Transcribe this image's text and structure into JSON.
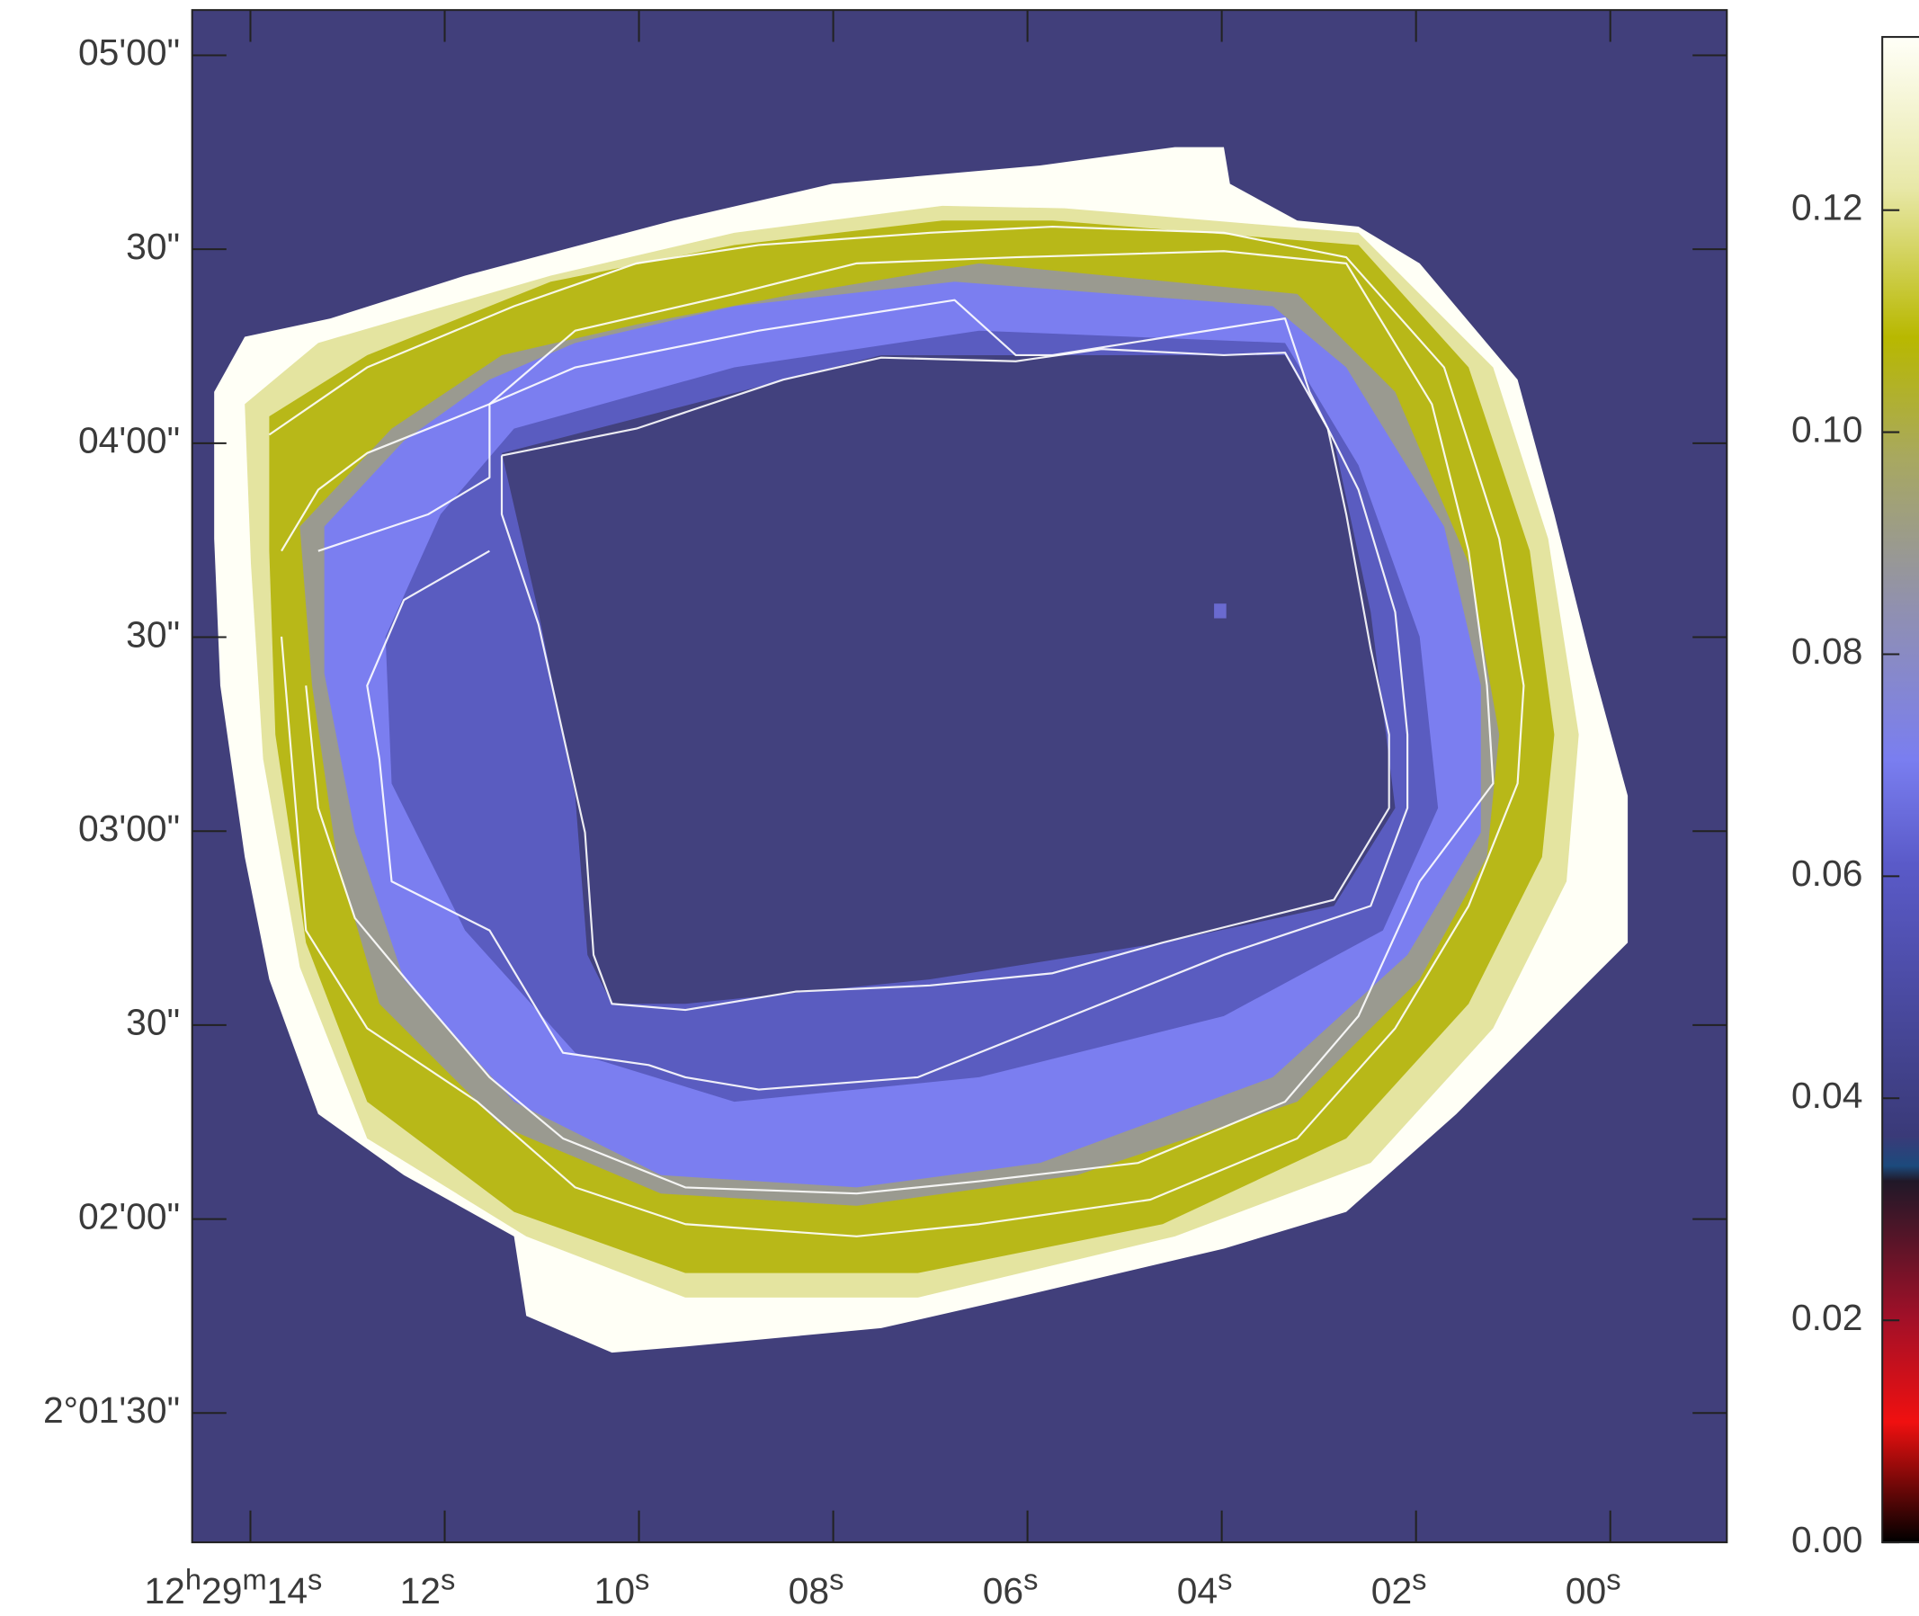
{
  "chart_data": {
    "type": "image",
    "xlim": [
      14.6,
      -1.2
    ],
    "xticks": [
      {
        "value": 14,
        "label": "12h29m14s"
      },
      {
        "value": 12,
        "label": "12s"
      },
      {
        "value": 10,
        "label": "10s"
      },
      {
        "value": 8,
        "label": "08s"
      },
      {
        "value": 6,
        "label": "06s"
      },
      {
        "value": 4,
        "label": "04s"
      },
      {
        "value": 2,
        "label": "02s"
      },
      {
        "value": 0,
        "label": "00s"
      }
    ],
    "ylim": [
      70,
      307
    ],
    "yticks": [
      {
        "value": 300,
        "label": "05'00\""
      },
      {
        "value": 270,
        "label": "30\""
      },
      {
        "value": 240,
        "label": "04'00\""
      },
      {
        "value": 210,
        "label": "30\""
      },
      {
        "value": 180,
        "label": "03'00\""
      },
      {
        "value": 150,
        "label": "30\""
      },
      {
        "value": 120,
        "label": "02'00\""
      },
      {
        "value": 90,
        "label": "2°01'30\""
      }
    ],
    "clim": [
      0,
      0.1356
    ],
    "cticks": [
      {
        "value": 0,
        "label": "0.00"
      },
      {
        "value": 0.02,
        "label": "0.02"
      },
      {
        "value": 0.04,
        "label": "0.04"
      },
      {
        "value": 0.06,
        "label": "0.06"
      },
      {
        "value": 0.08,
        "label": "0.08"
      },
      {
        "value": 0.1,
        "label": "0.10"
      },
      {
        "value": 0.12,
        "label": "0.12"
      }
    ]
  }
}
